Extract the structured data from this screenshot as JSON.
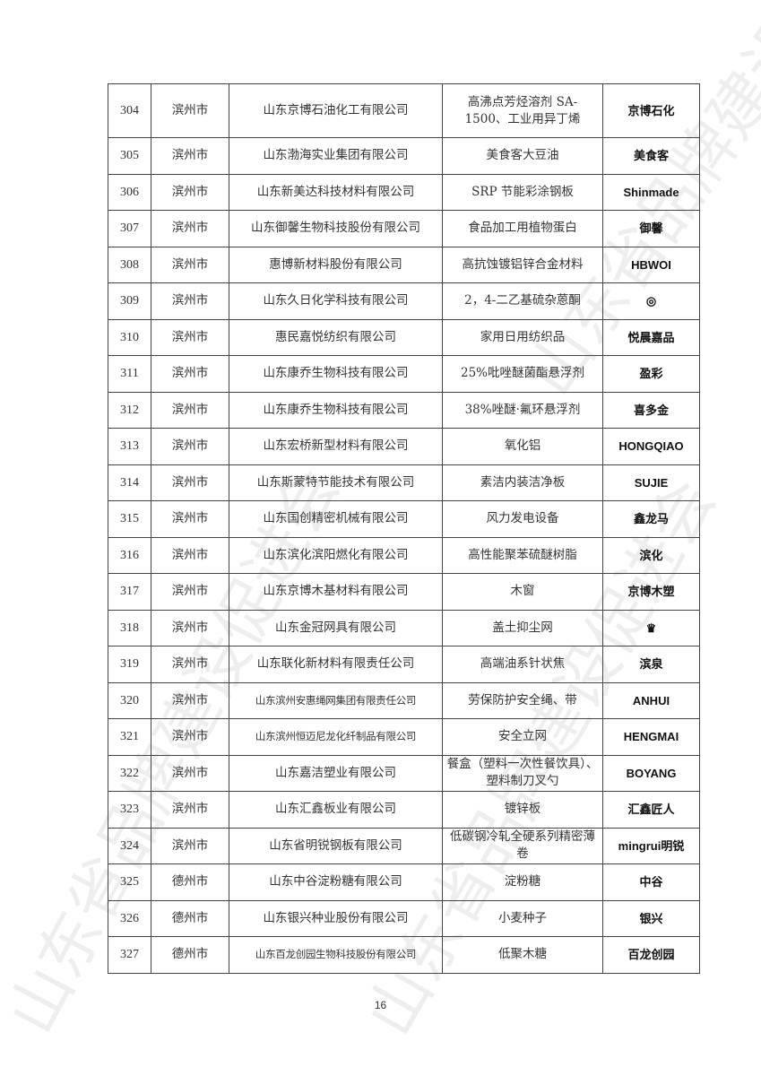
{
  "watermark": "山东省品牌建设促进会",
  "page_number": "16",
  "rows": [
    {
      "no": "304",
      "city": "滨州市",
      "company": "山东京博石油化工有限公司",
      "product": "高沸点芳烃溶剂 SA-1500、工业用异丁烯",
      "logo": "京博石化"
    },
    {
      "no": "305",
      "city": "滨州市",
      "company": "山东渤海实业集团有限公司",
      "product": "美食客大豆油",
      "logo": "美食客"
    },
    {
      "no": "306",
      "city": "滨州市",
      "company": "山东新美达科技材料有限公司",
      "product": "SRP 节能彩涂钢板",
      "logo": "Shinmade"
    },
    {
      "no": "307",
      "city": "滨州市",
      "company": "山东御馨生物科技股份有限公司",
      "product": "食品加工用植物蛋白",
      "logo": "御馨"
    },
    {
      "no": "308",
      "city": "滨州市",
      "company": "惠博新材料股份有限公司",
      "product": "高抗蚀镀铝锌合金材料",
      "logo": "HBWOI"
    },
    {
      "no": "309",
      "city": "滨州市",
      "company": "山东久日化学科技有限公司",
      "product": "2，4-二乙基硫杂蒽酮",
      "logo": "◎"
    },
    {
      "no": "310",
      "city": "滨州市",
      "company": "惠民嘉悦纺织有限公司",
      "product": "家用日用纺织品",
      "logo": "悦晨嘉品"
    },
    {
      "no": "311",
      "city": "滨州市",
      "company": "山东康乔生物科技有限公司",
      "product": "25%吡唑醚菌酯悬浮剂",
      "logo": "盈彩"
    },
    {
      "no": "312",
      "city": "滨州市",
      "company": "山东康乔生物科技有限公司",
      "product": "38%唑醚·氟环悬浮剂",
      "logo": "喜多金"
    },
    {
      "no": "313",
      "city": "滨州市",
      "company": "山东宏桥新型材料有限公司",
      "product": "氧化铝",
      "logo": "HONGQIAO"
    },
    {
      "no": "314",
      "city": "滨州市",
      "company": "山东斯蒙特节能技术有限公司",
      "product": "素洁内装洁净板",
      "logo": "SUJIE"
    },
    {
      "no": "315",
      "city": "滨州市",
      "company": "山东国创精密机械有限公司",
      "product": "风力发电设备",
      "logo": "鑫龙马"
    },
    {
      "no": "316",
      "city": "滨州市",
      "company": "山东滨化滨阳燃化有限公司",
      "product": "高性能聚苯硫醚树脂",
      "logo": "滨化"
    },
    {
      "no": "317",
      "city": "滨州市",
      "company": "山东京博木基材料有限公司",
      "product": "木窗",
      "logo": "京博木塑"
    },
    {
      "no": "318",
      "city": "滨州市",
      "company": "山东金冠网具有限公司",
      "product": "盖土抑尘网",
      "logo": "♛"
    },
    {
      "no": "319",
      "city": "滨州市",
      "company": "山东联化新材料有限责任公司",
      "product": "高端油系针状焦",
      "logo": "滨泉"
    },
    {
      "no": "320",
      "city": "滨州市",
      "company": "山东滨州安惠绳网集团有限责任公司",
      "product": "劳保防护安全绳、带",
      "logo": "ANHUI"
    },
    {
      "no": "321",
      "city": "滨州市",
      "company": "山东滨州恒迈尼龙化纤制品有限公司",
      "product": "安全立网",
      "logo": "HENGMAI"
    },
    {
      "no": "322",
      "city": "滨州市",
      "company": "山东嘉洁塑业有限公司",
      "product": "餐盒（塑料一次性餐饮具）、塑料制刀叉勺",
      "logo": "BOYANG"
    },
    {
      "no": "323",
      "city": "滨州市",
      "company": "山东汇鑫板业有限公司",
      "product": "镀锌板",
      "logo": "汇鑫匠人"
    },
    {
      "no": "324",
      "city": "滨州市",
      "company": "山东省明锐钢板有限公司",
      "product": "低碳钢冷轧全硬系列精密薄卷",
      "logo": "mingrui明锐"
    },
    {
      "no": "325",
      "city": "德州市",
      "company": "山东中谷淀粉糖有限公司",
      "product": "淀粉糖",
      "logo": "中谷"
    },
    {
      "no": "326",
      "city": "德州市",
      "company": "山东银兴种业股份有限公司",
      "product": "小麦种子",
      "logo": "银兴"
    },
    {
      "no": "327",
      "city": "德州市",
      "company": "山东百龙创园生物科技股份有限公司",
      "product": "低聚木糖",
      "logo": "百龙创园"
    }
  ]
}
